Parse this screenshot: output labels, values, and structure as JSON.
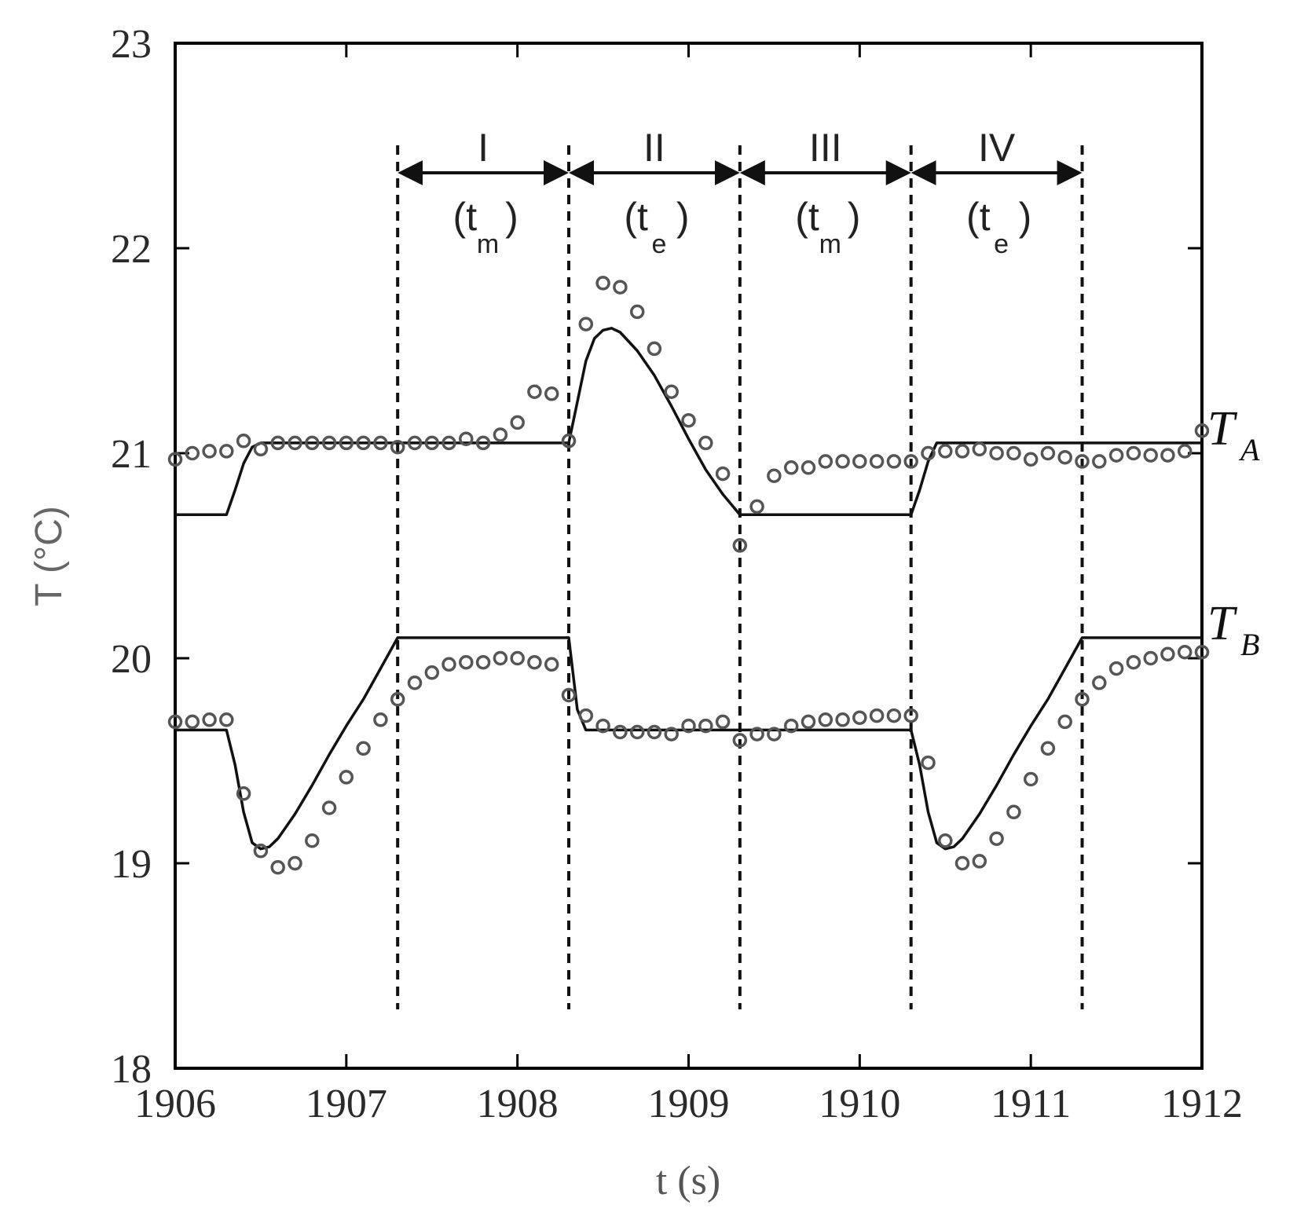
{
  "chart_data": {
    "type": "line",
    "xlabel": "t (s)",
    "ylabel": "T (°C)",
    "xlim": [
      1906,
      1912
    ],
    "ylim": [
      18,
      23
    ],
    "xticks": [
      "1906",
      "1907",
      "1908",
      "1909",
      "1910",
      "1911",
      "1912"
    ],
    "yticks": [
      "18",
      "19",
      "20",
      "21",
      "22",
      "23"
    ],
    "grid": false,
    "phases": [
      {
        "label": "I",
        "paren_open": "(t",
        "sub": "m",
        "paren_close": ")",
        "start": 1907.3,
        "end": 1908.3
      },
      {
        "label": "II",
        "paren_open": "(t",
        "sub": "e",
        "paren_close": ")",
        "start": 1908.3,
        "end": 1909.3
      },
      {
        "label": "III",
        "paren_open": "(t",
        "sub": "m",
        "paren_close": ")",
        "start": 1909.3,
        "end": 1910.3
      },
      {
        "label": "IV",
        "paren_open": "(t",
        "sub": "e",
        "paren_close": ")",
        "start": 1910.3,
        "end": 1911.3
      }
    ],
    "series": [
      {
        "name": "T",
        "name_sub": "A",
        "line": {
          "x": [
            1906.0,
            1906.3,
            1906.35,
            1906.4,
            1906.45,
            1906.5,
            1908.3,
            1908.35,
            1908.4,
            1908.45,
            1908.5,
            1908.55,
            1908.6,
            1908.7,
            1908.8,
            1908.9,
            1909.0,
            1909.1,
            1909.2,
            1909.3,
            1910.3,
            1910.35,
            1910.4,
            1910.45,
            1912.0
          ],
          "y": [
            20.7,
            20.7,
            20.82,
            20.95,
            21.03,
            21.05,
            21.05,
            21.25,
            21.45,
            21.56,
            21.6,
            21.61,
            21.59,
            21.5,
            21.38,
            21.23,
            21.07,
            20.92,
            20.8,
            20.7,
            20.7,
            20.82,
            20.96,
            21.05,
            21.05
          ]
        },
        "points": {
          "x": [
            1906.0,
            1906.1,
            1906.2,
            1906.3,
            1906.4,
            1906.5,
            1906.6,
            1906.7,
            1906.8,
            1906.9,
            1907.0,
            1907.1,
            1907.2,
            1907.3,
            1907.4,
            1907.5,
            1907.6,
            1907.7,
            1907.8,
            1907.9,
            1908.0,
            1908.1,
            1908.2,
            1908.3,
            1908.4,
            1908.5,
            1908.6,
            1908.7,
            1908.8,
            1908.9,
            1909.0,
            1909.1,
            1909.2,
            1909.3,
            1909.4,
            1909.5,
            1909.6,
            1909.7,
            1909.8,
            1909.9,
            1910.0,
            1910.1,
            1910.2,
            1910.3,
            1910.4,
            1910.5,
            1910.6,
            1910.7,
            1910.8,
            1910.9,
            1911.0,
            1911.1,
            1911.2,
            1911.3,
            1911.4,
            1911.5,
            1911.6,
            1911.7,
            1911.8,
            1911.9,
            1912.0
          ],
          "y": [
            20.97,
            21.0,
            21.01,
            21.01,
            21.06,
            21.02,
            21.05,
            21.05,
            21.05,
            21.05,
            21.05,
            21.05,
            21.05,
            21.03,
            21.05,
            21.05,
            21.05,
            21.07,
            21.05,
            21.09,
            21.15,
            21.3,
            21.29,
            21.06,
            21.63,
            21.83,
            21.81,
            21.69,
            21.51,
            21.3,
            21.16,
            21.05,
            20.9,
            20.55,
            20.74,
            20.89,
            20.93,
            20.93,
            20.96,
            20.96,
            20.96,
            20.96,
            20.96,
            20.96,
            21.0,
            21.01,
            21.01,
            21.02,
            21.0,
            21.0,
            20.97,
            21.0,
            20.98,
            20.96,
            20.96,
            20.99,
            21.0,
            20.99,
            20.99,
            21.01,
            21.11
          ]
        }
      },
      {
        "name": "T",
        "name_sub": "B",
        "line": {
          "x": [
            1906.0,
            1906.3,
            1906.35,
            1906.4,
            1906.45,
            1906.5,
            1906.55,
            1906.6,
            1906.7,
            1906.8,
            1906.9,
            1907.0,
            1907.1,
            1907.2,
            1907.3,
            1908.3,
            1908.35,
            1908.4,
            1910.3,
            1910.35,
            1910.4,
            1910.45,
            1910.5,
            1910.55,
            1910.6,
            1910.7,
            1910.8,
            1910.9,
            1911.0,
            1911.1,
            1911.2,
            1911.3,
            1912.0
          ],
          "y": [
            19.65,
            19.65,
            19.48,
            19.25,
            19.1,
            19.07,
            19.08,
            19.12,
            19.24,
            19.38,
            19.53,
            19.67,
            19.8,
            19.95,
            20.1,
            20.1,
            19.75,
            19.65,
            19.65,
            19.48,
            19.25,
            19.1,
            19.07,
            19.08,
            19.12,
            19.24,
            19.38,
            19.53,
            19.67,
            19.8,
            19.95,
            20.1,
            20.1
          ]
        },
        "points": {
          "x": [
            1906.0,
            1906.1,
            1906.2,
            1906.3,
            1906.4,
            1906.5,
            1906.6,
            1906.7,
            1906.8,
            1906.9,
            1907.0,
            1907.1,
            1907.2,
            1907.3,
            1907.4,
            1907.5,
            1907.6,
            1907.7,
            1907.8,
            1907.9,
            1908.0,
            1908.1,
            1908.2,
            1908.3,
            1908.4,
            1908.5,
            1908.6,
            1908.7,
            1908.8,
            1908.9,
            1909.0,
            1909.1,
            1909.2,
            1909.3,
            1909.4,
            1909.5,
            1909.6,
            1909.7,
            1909.8,
            1909.9,
            1910.0,
            1910.1,
            1910.2,
            1910.3,
            1910.4,
            1910.5,
            1910.6,
            1910.7,
            1910.8,
            1910.9,
            1911.0,
            1911.1,
            1911.2,
            1911.3,
            1911.4,
            1911.5,
            1911.6,
            1911.7,
            1911.8,
            1911.9,
            1912.0
          ],
          "y": [
            19.69,
            19.69,
            19.7,
            19.7,
            19.34,
            19.06,
            18.98,
            19.0,
            19.11,
            19.27,
            19.42,
            19.56,
            19.7,
            19.8,
            19.88,
            19.93,
            19.97,
            19.98,
            19.98,
            20.0,
            20.0,
            19.98,
            19.97,
            19.82,
            19.72,
            19.67,
            19.64,
            19.64,
            19.64,
            19.63,
            19.67,
            19.67,
            19.69,
            19.6,
            19.63,
            19.63,
            19.67,
            19.69,
            19.7,
            19.7,
            19.71,
            19.72,
            19.72,
            19.72,
            19.49,
            19.11,
            19.0,
            19.01,
            19.12,
            19.25,
            19.41,
            19.56,
            19.69,
            19.8,
            19.88,
            19.95,
            19.98,
            20.0,
            20.02,
            20.03,
            20.03
          ]
        }
      }
    ]
  }
}
